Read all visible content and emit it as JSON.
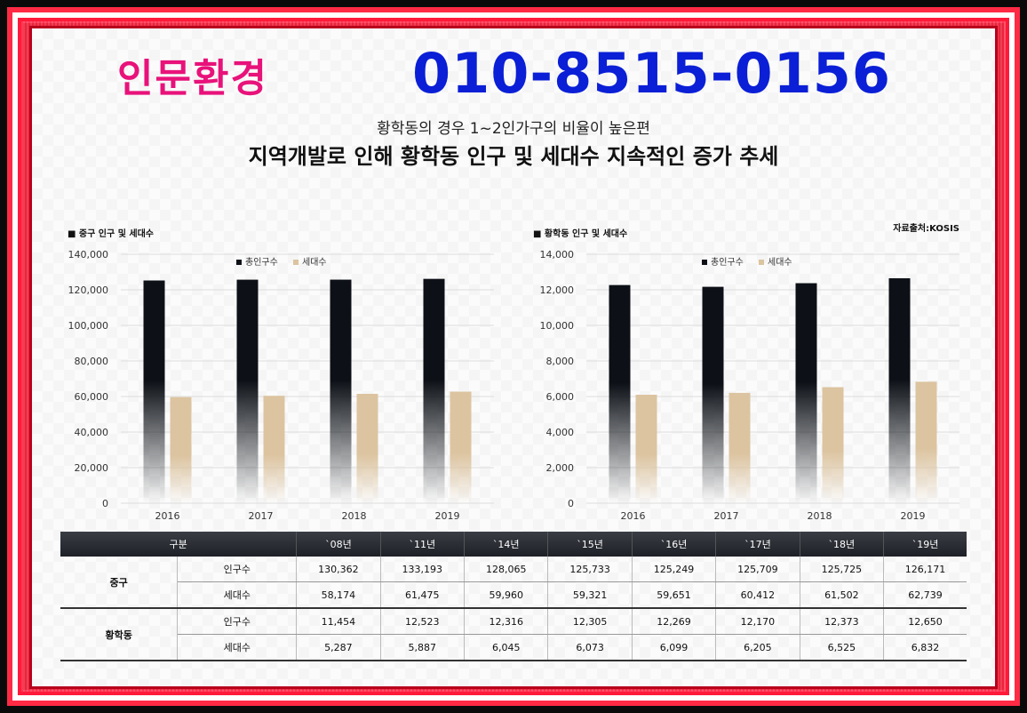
{
  "header": {
    "brand": "인문환경",
    "phone": "010-8515-0156",
    "subtitle": "황학동의 경우 1~2인가구의 비율이 높은편",
    "headline": "지역개발로 인해 황학동 인구 및 세대수 지속적인 증가 추세"
  },
  "source": "자료출처:KOSIS",
  "colors": {
    "population": "#0d1117",
    "households": "#dcc4a0",
    "brand": "#e8127a",
    "phone": "#0a1fd6"
  },
  "chart_data": [
    {
      "type": "bar",
      "title": "■ 중구 인구 및 세대수",
      "categories": [
        "2016",
        "2017",
        "2018",
        "2019"
      ],
      "series": [
        {
          "name": "총인구수",
          "values": [
            125249,
            125709,
            125725,
            126171
          ]
        },
        {
          "name": "세대수",
          "values": [
            59651,
            60412,
            61502,
            62739
          ]
        }
      ],
      "ylim": [
        0,
        140000
      ],
      "yticks": [
        "0",
        "20,000",
        "40,000",
        "60,000",
        "80,000",
        "100,000",
        "120,000",
        "140,000"
      ],
      "legend": "top-center",
      "grid": true
    },
    {
      "type": "bar",
      "title": "■ 황학동 인구 및 세대수",
      "categories": [
        "2016",
        "2017",
        "2018",
        "2019"
      ],
      "series": [
        {
          "name": "총인구수",
          "values": [
            12269,
            12170,
            12373,
            12650
          ]
        },
        {
          "name": "세대수",
          "values": [
            6099,
            6205,
            6525,
            6832
          ]
        }
      ],
      "ylim": [
        0,
        14000
      ],
      "yticks": [
        "0",
        "2,000",
        "4,000",
        "6,000",
        "8,000",
        "10,000",
        "12,000",
        "14,000"
      ],
      "legend": "top-center",
      "grid": true
    }
  ],
  "table": {
    "header": [
      "구분",
      "`08년",
      "`11년",
      "`14년",
      "`15년",
      "`16년",
      "`17년",
      "`18년",
      "`19년"
    ],
    "groups": [
      {
        "name": "중구",
        "rows": [
          {
            "label": "인구수",
            "values": [
              "130,362",
              "133,193",
              "128,065",
              "125,733",
              "125,249",
              "125,709",
              "125,725",
              "126,171"
            ]
          },
          {
            "label": "세대수",
            "values": [
              "58,174",
              "61,475",
              "59,960",
              "59,321",
              "59,651",
              "60,412",
              "61,502",
              "62,739"
            ]
          }
        ]
      },
      {
        "name": "황학동",
        "rows": [
          {
            "label": "인구수",
            "values": [
              "11,454",
              "12,523",
              "12,316",
              "12,305",
              "12,269",
              "12,170",
              "12,373",
              "12,650"
            ]
          },
          {
            "label": "세대수",
            "values": [
              "5,287",
              "5,887",
              "6,045",
              "6,073",
              "6,099",
              "6,205",
              "6,525",
              "6,832"
            ]
          }
        ]
      }
    ]
  }
}
